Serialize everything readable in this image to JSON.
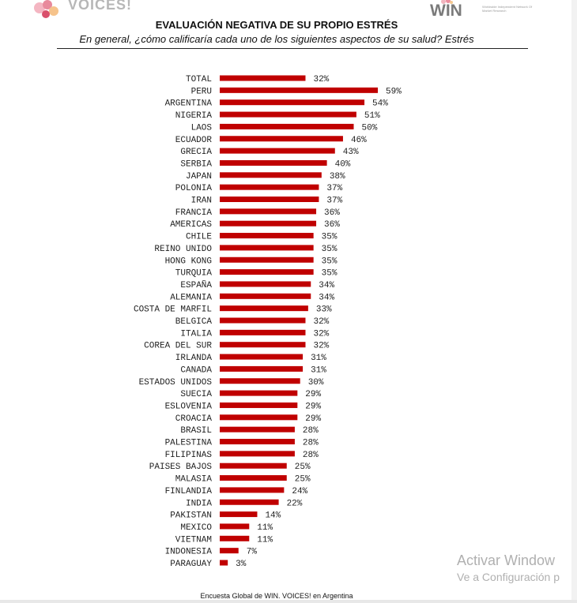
{
  "header": {
    "left_logo_text": "VOICES!",
    "right_logo_text": "WIN",
    "right_logo_subtext": "Worldwide Independent Network Of Market Research"
  },
  "colors": {
    "bar": "#c00000",
    "text": "#222222"
  },
  "chart_data": {
    "type": "bar",
    "orientation": "horizontal",
    "title": "EVALUACIÓN NEGATIVA DE SU PROPIO ESTRÉS",
    "subtitle": "En general, ¿cómo calificaría cada uno de los siguientes aspectos de su salud? Estrés",
    "value_suffix": "%",
    "grid": false,
    "categories": [
      "TOTAL",
      "PERU",
      "ARGENTINA",
      "NIGERIA",
      "LAOS",
      "ECUADOR",
      "GRECIA",
      "SERBIA",
      "JAPAN",
      "POLONIA",
      "IRAN",
      "FRANCIA",
      "AMERICAS",
      "CHILE",
      "REINO UNIDO",
      "HONG KONG",
      "TURQUIA",
      "ESPAÑA",
      "ALEMANIA",
      "COSTA DE MARFIL",
      "BELGICA",
      "ITALIA",
      "COREA DEL SUR",
      "IRLANDA",
      "CANADA",
      "ESTADOS UNIDOS",
      "SUECIA",
      "ESLOVENIA",
      "CROACIA",
      "BRASIL",
      "PALESTINA",
      "FILIPINAS",
      "PAISES BAJOS",
      "MALASIA",
      "FINLANDIA",
      "INDIA",
      "PAKISTAN",
      "MEXICO",
      "VIETNAM",
      "INDONESIA",
      "PARAGUAY"
    ],
    "values": [
      32,
      59,
      54,
      51,
      50,
      46,
      43,
      40,
      38,
      37,
      37,
      36,
      36,
      35,
      35,
      35,
      35,
      34,
      34,
      33,
      32,
      32,
      32,
      31,
      31,
      30,
      29,
      29,
      29,
      28,
      28,
      28,
      25,
      25,
      24,
      22,
      14,
      11,
      11,
      7,
      3
    ]
  },
  "watermark": {
    "line1": "Activar Window",
    "line2": "Ve a Configuración p"
  },
  "footer": {
    "text": "Encuesta Global de WIN. VOICES! en Argentina"
  }
}
